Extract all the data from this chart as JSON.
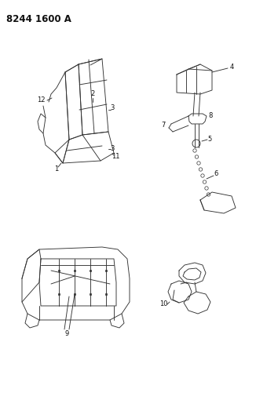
{
  "title": "8244 1600 A",
  "bg_color": "#ffffff",
  "line_color": "#333333",
  "label_color": "#111111",
  "label_fontsize": 6.0,
  "title_fontsize": 8.5,
  "figsize": [
    3.4,
    5.33
  ],
  "dpi": 100
}
